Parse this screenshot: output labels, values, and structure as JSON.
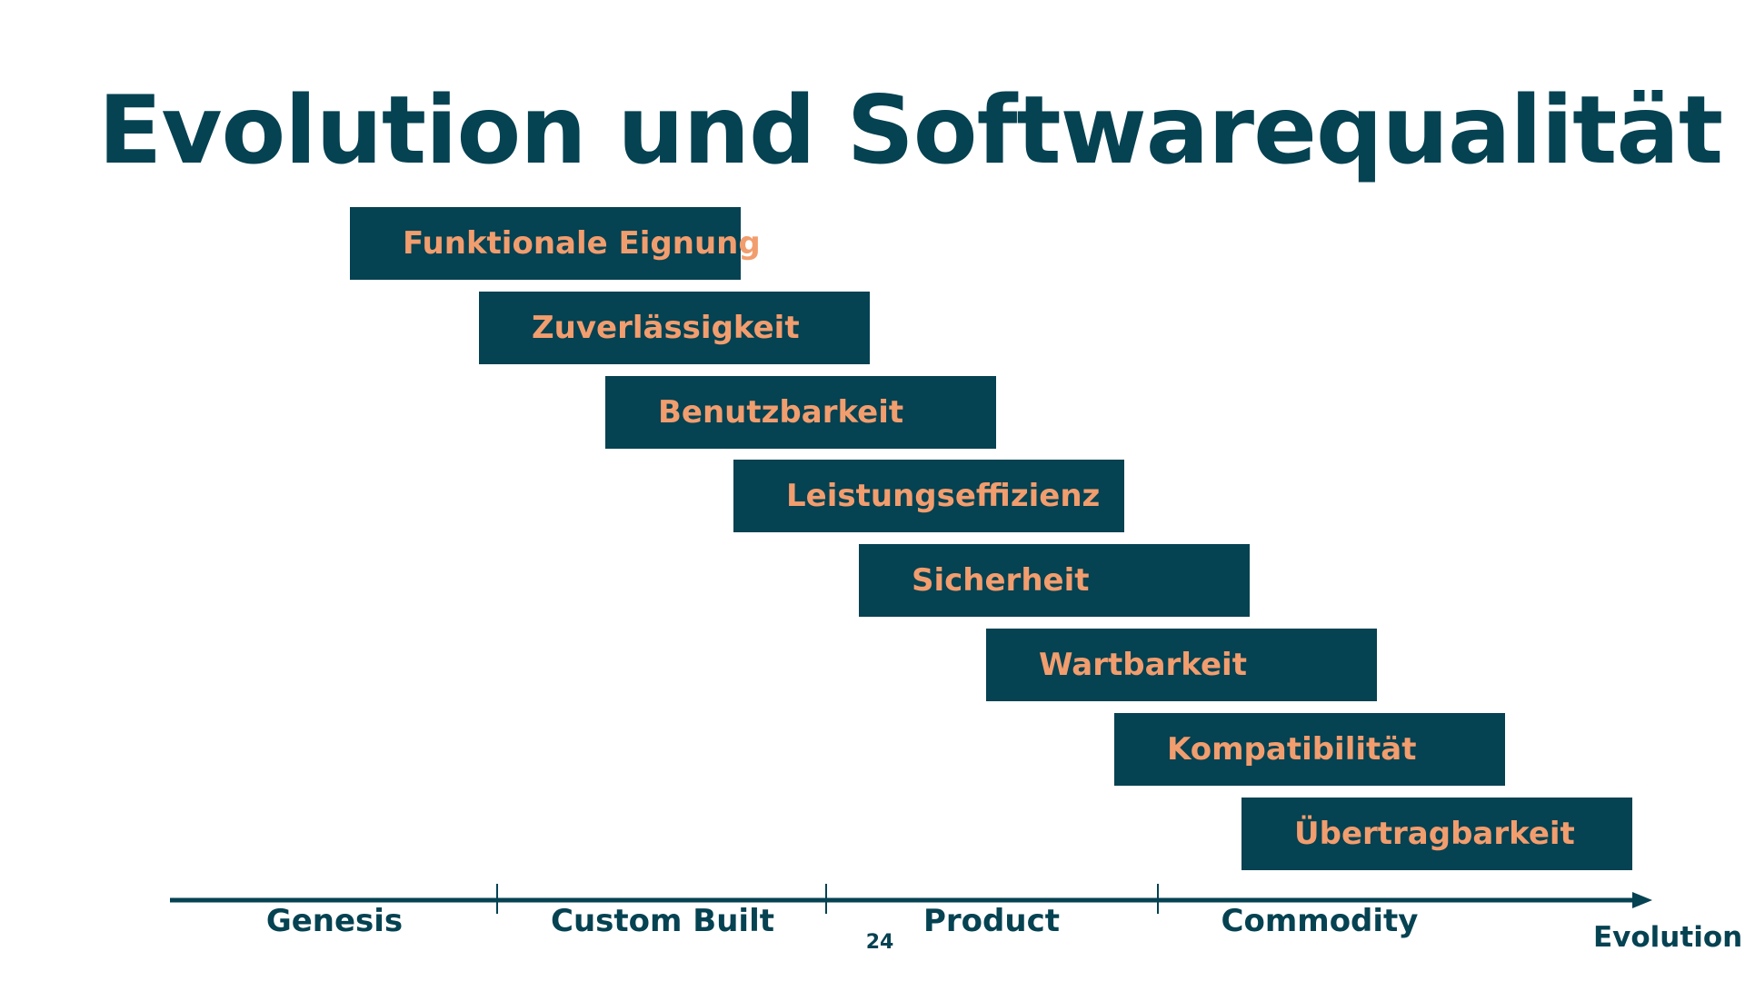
{
  "slide": {
    "title": "Evolution und Softwarequalität",
    "page_number": "24"
  },
  "quality_bars": [
    {
      "label": "Funktionale Eignung"
    },
    {
      "label": "Zuverlässigkeit"
    },
    {
      "label": "Benutzbarkeit"
    },
    {
      "label": "Leistungseffizienz"
    },
    {
      "label": "Sicherheit"
    },
    {
      "label": "Wartbarkeit"
    },
    {
      "label": "Kompatibilität"
    },
    {
      "label": "Übertragbarkeit"
    }
  ],
  "axis": {
    "label": "Evolution",
    "stages": [
      "Genesis",
      "Custom Built",
      "Product",
      "Commodity"
    ]
  },
  "colors": {
    "primary": "#054252",
    "accent": "#F29D6E",
    "background": "#FFFFFF"
  }
}
